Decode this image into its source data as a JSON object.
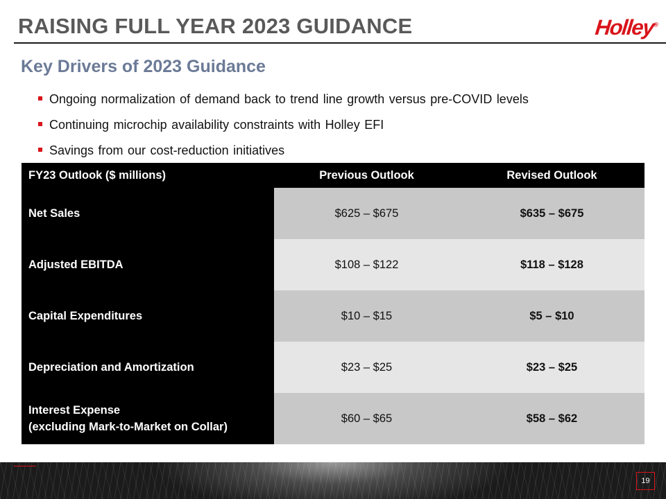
{
  "slide": {
    "title": "RAISING FULL YEAR 2023 GUIDANCE",
    "logo_text": "Holley",
    "logo_mark": "®",
    "subtitle": "Key Drivers of 2023 Guidance",
    "bullets": [
      "Ongoing normalization of demand back to trend line growth versus pre-COVID levels",
      "Continuing microchip availability constraints with Holley EFI",
      "Savings from our cost-reduction initiatives"
    ],
    "page_number": "19"
  },
  "table": {
    "headers": [
      "FY23 Outlook ($ millions)",
      "Previous Outlook",
      "Revised Outlook"
    ],
    "rows": [
      {
        "label_line1": "Net Sales",
        "label_line2": "",
        "previous": "$625 – $675",
        "revised": "$635 – $675"
      },
      {
        "label_line1": "Adjusted EBITDA",
        "label_line2": "",
        "previous": "$108 – $122",
        "revised": "$118 – $128"
      },
      {
        "label_line1": "Capital Expenditures",
        "label_line2": "",
        "previous": "$10 – $15",
        "revised": "$5 – $10"
      },
      {
        "label_line1": "Depreciation and Amortization",
        "label_line2": "",
        "previous": "$23 – $25",
        "revised": "$23 – $25"
      },
      {
        "label_line1": "Interest Expense",
        "label_line2": "(excluding Mark-to-Market on Collar)",
        "previous": "$60 – $65",
        "revised": "$58 – $62"
      }
    ]
  },
  "colors": {
    "accent_red": "#d9141b",
    "title_gray": "#595959",
    "subtitle_slate": "#6b7a96",
    "table_header": "#000000",
    "row_shade_dark": "#c8c8c8",
    "row_shade_light": "#e6e6e6"
  }
}
